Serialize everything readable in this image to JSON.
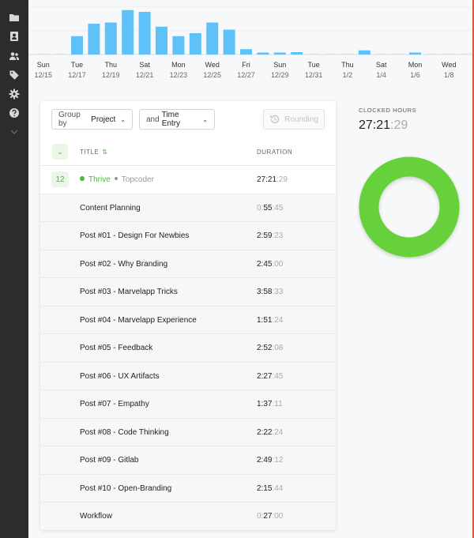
{
  "sidebar": {
    "icons": [
      "folder-icon",
      "contact-card-icon",
      "users-icon",
      "tag-icon",
      "gear-icon",
      "help-icon",
      "chevron-down-icon"
    ]
  },
  "chart_data": {
    "type": "bar",
    "categories": [
      "12/15",
      "12/16",
      "12/17",
      "12/18",
      "12/19",
      "12/20",
      "12/21",
      "12/22",
      "12/23",
      "12/24",
      "12/25",
      "12/26",
      "12/27",
      "12/28",
      "12/29",
      "12/30",
      "12/31",
      "1/1",
      "1/2",
      "1/3",
      "1/4",
      "1/5",
      "1/6",
      "1/7",
      "1/8",
      "1/9"
    ],
    "values": [
      0,
      0,
      3.1,
      5.2,
      5.4,
      7.5,
      7.2,
      4.7,
      3.1,
      3.6,
      5.4,
      4.2,
      0.9,
      0.3,
      0.3,
      0.4,
      0,
      0,
      0,
      0.7,
      0,
      0,
      0.3,
      0,
      0,
      0
    ],
    "ylim": [
      0,
      8
    ],
    "tick_labels": [
      {
        "day": "Sun",
        "date": "12/15"
      },
      {
        "day": "Tue",
        "date": "12/17"
      },
      {
        "day": "Thu",
        "date": "12/19"
      },
      {
        "day": "Sat",
        "date": "12/21"
      },
      {
        "day": "Mon",
        "date": "12/23"
      },
      {
        "day": "Wed",
        "date": "12/25"
      },
      {
        "day": "Fri",
        "date": "12/27"
      },
      {
        "day": "Sun",
        "date": "12/29"
      },
      {
        "day": "Tue",
        "date": "12/31"
      },
      {
        "day": "Thu",
        "date": "1/2"
      },
      {
        "day": "Sat",
        "date": "1/4"
      },
      {
        "day": "Mon",
        "date": "1/6"
      },
      {
        "day": "Wed",
        "date": "1/8"
      }
    ],
    "bar_color": "#5ec2f9",
    "grid": true
  },
  "controls": {
    "group_prefix": "Group by",
    "group_value": "Project",
    "sub_prefix": "and",
    "sub_value": "Time Entry",
    "rounding": "Rounding"
  },
  "table": {
    "col_title": "TITLE",
    "col_duration": "DURATION",
    "project": {
      "count": "12",
      "name": "Thrive",
      "client": "Topcoder",
      "duration_main": "27:21",
      "duration_sec": ":29",
      "color": "#4fb83a"
    },
    "entries": [
      {
        "title": "Content Planning",
        "dim_lead": "0:",
        "main": "55",
        "sec": ":45"
      },
      {
        "title": "Post #01 - Design For Newbies",
        "dim_lead": "",
        "main": "2:59",
        "sec": ":23"
      },
      {
        "title": "Post #02 - Why Branding",
        "dim_lead": "",
        "main": "2:45",
        "sec": ":00"
      },
      {
        "title": "Post #03 - Marvelapp Tricks",
        "dim_lead": "",
        "main": "3:58",
        "sec": ":33"
      },
      {
        "title": "Post #04 - Marvelapp Experience",
        "dim_lead": "",
        "main": "1:51",
        "sec": ":24"
      },
      {
        "title": "Post #05 - Feedback",
        "dim_lead": "",
        "main": "2:52",
        "sec": ":08"
      },
      {
        "title": "Post #06 - UX Artifacts",
        "dim_lead": "",
        "main": "2:27",
        "sec": ":45"
      },
      {
        "title": "Post #07 - Empathy",
        "dim_lead": "",
        "main": "1:37",
        "sec": ":11"
      },
      {
        "title": "Post #08 - Code Thinking",
        "dim_lead": "",
        "main": "2:22",
        "sec": ":24"
      },
      {
        "title": "Post #09 - Gitlab",
        "dim_lead": "",
        "main": "2:49",
        "sec": ":12"
      },
      {
        "title": "Post #10 - Open-Branding",
        "dim_lead": "",
        "main": "2:15",
        "sec": ":44"
      },
      {
        "title": "Workflow",
        "dim_lead": "0:",
        "main": "27",
        "sec": ":00"
      }
    ]
  },
  "summary": {
    "label": "CLOCKED HOURS",
    "value_main": "27:21",
    "value_sec": ":29",
    "donut_color": "#66d13a"
  }
}
